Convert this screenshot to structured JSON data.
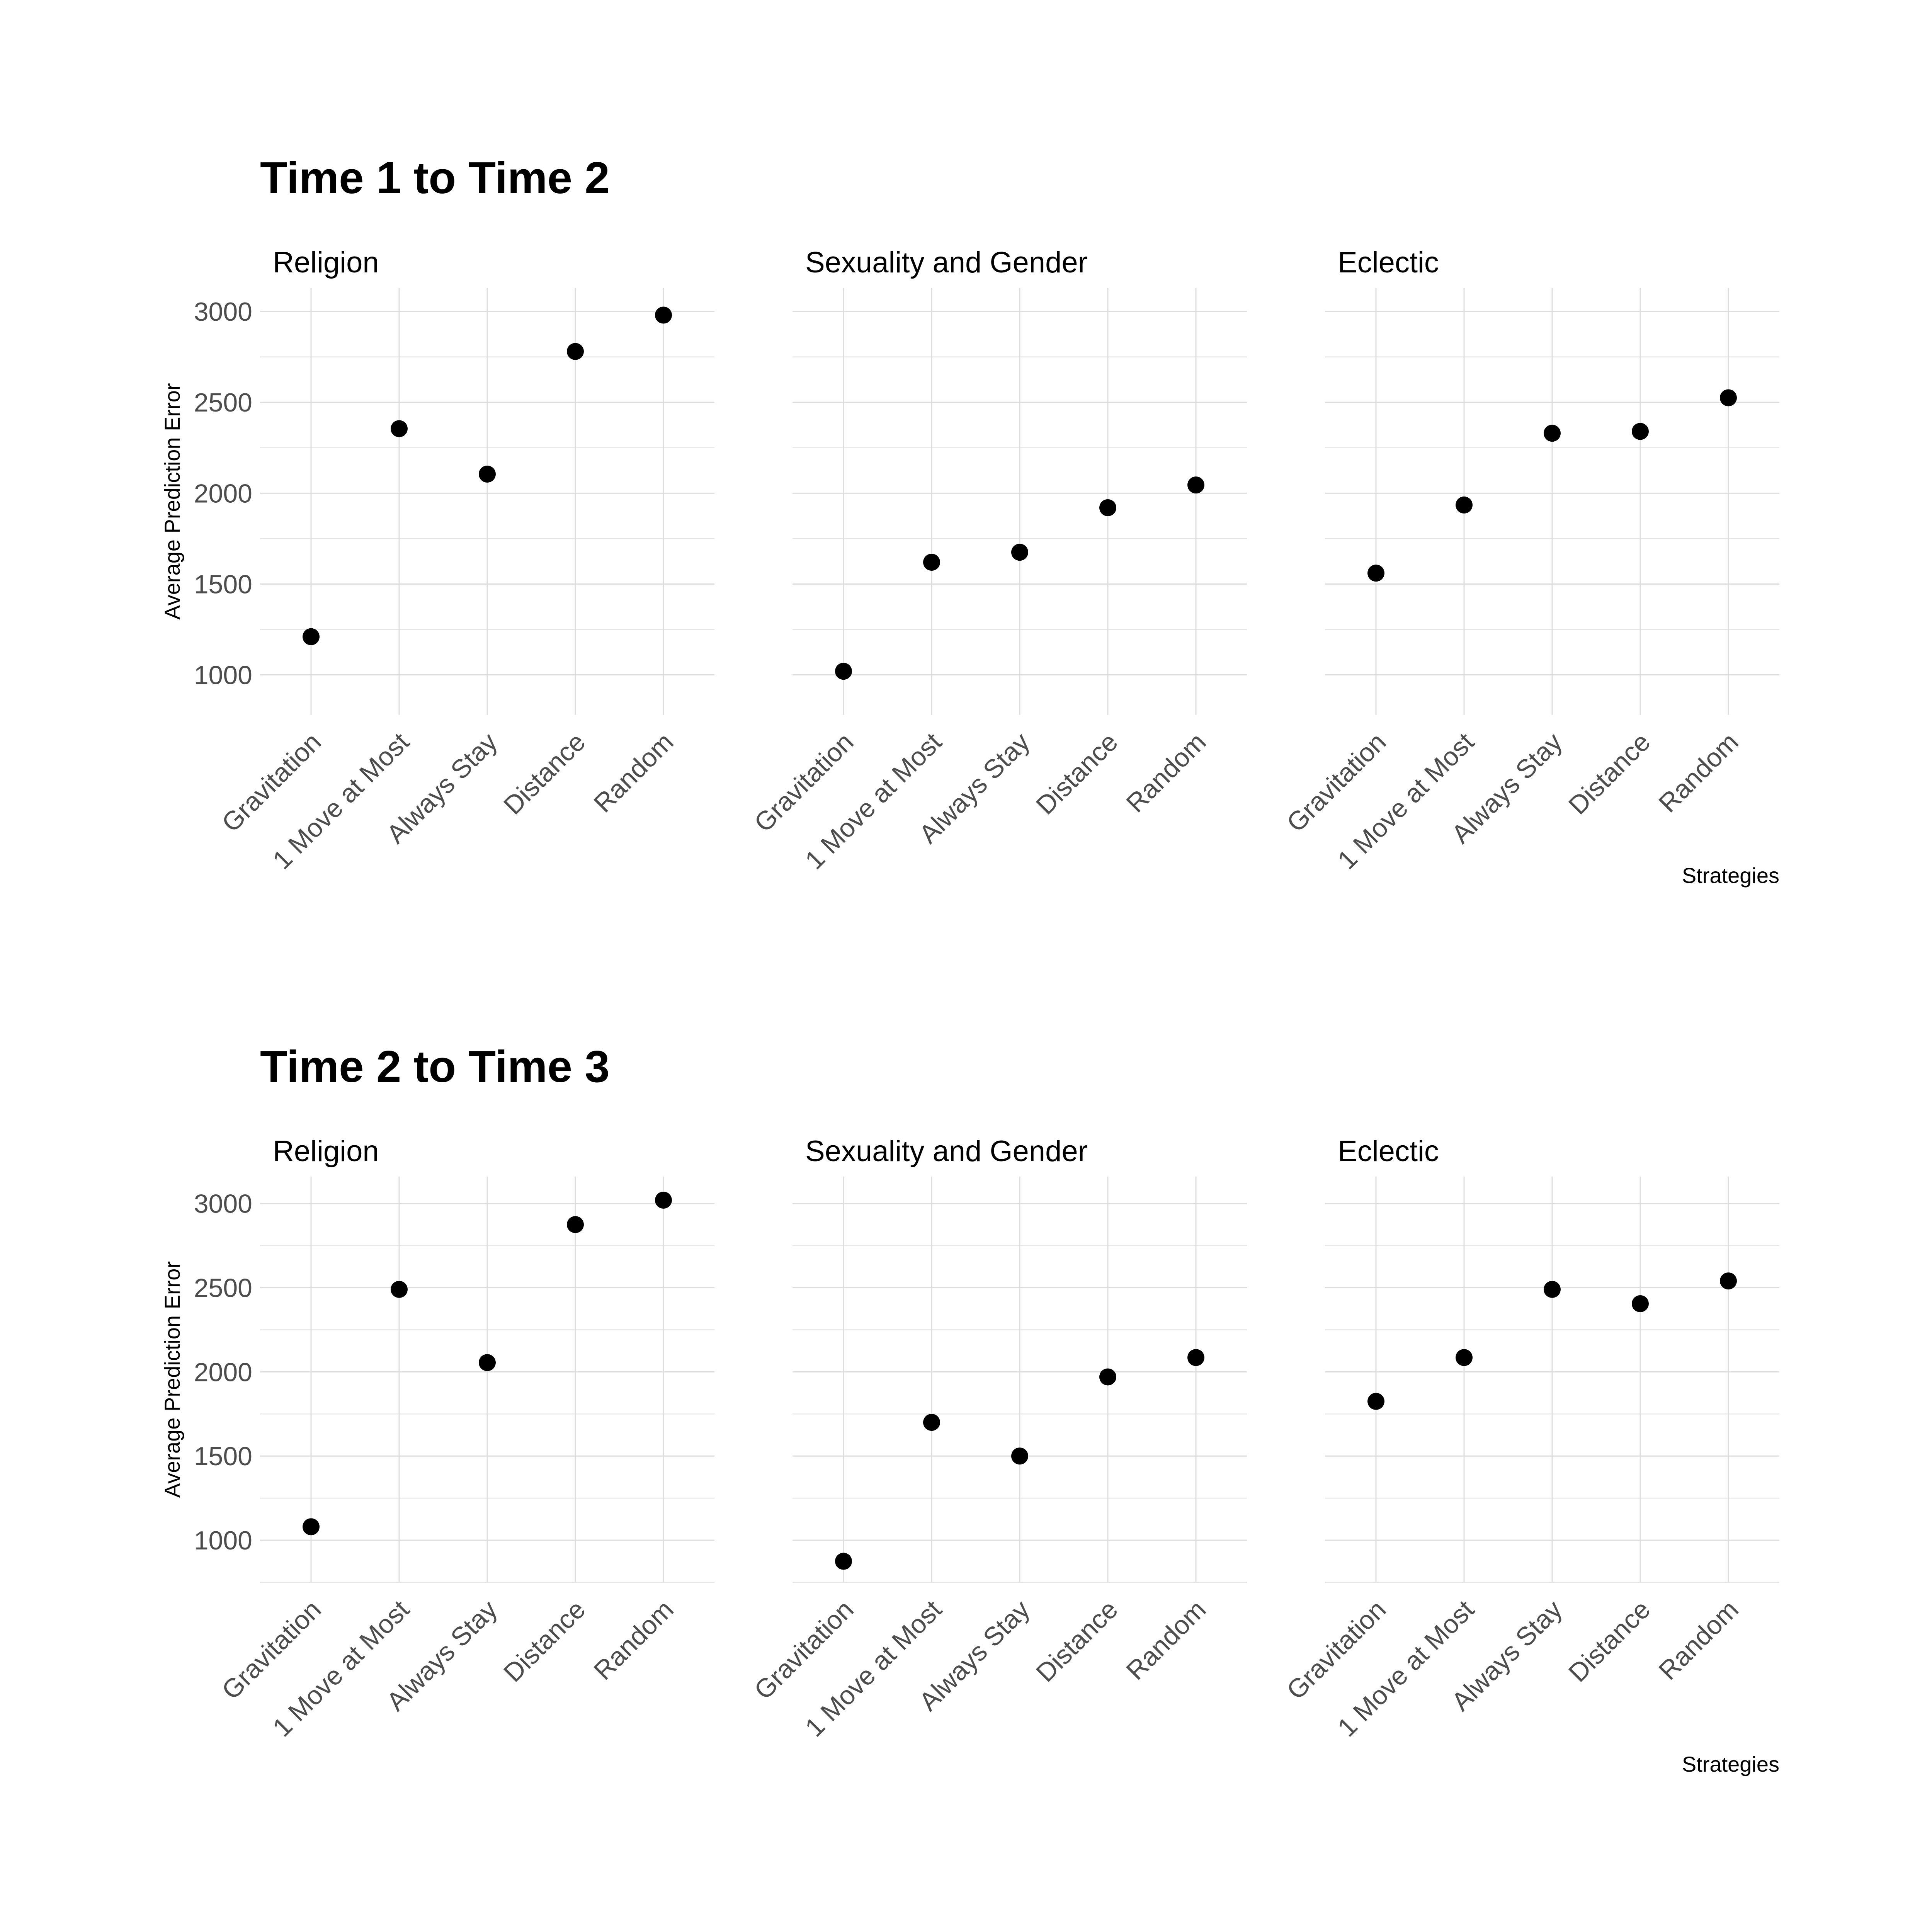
{
  "chart_data": [
    {
      "type": "scatter",
      "title": "Time 1 to Time 2",
      "xlabel": "Strategies",
      "ylabel": "Average Prediction Error",
      "categories": [
        "Gravitation",
        "1 Move at Most",
        "Always Stay",
        "Distance",
        "Random"
      ],
      "ylim": [
        780,
        3130
      ],
      "yticks": [
        1000,
        1500,
        2000,
        2500,
        3000
      ],
      "grid": true,
      "facets": [
        {
          "name": "Religion",
          "values": [
            1210,
            2355,
            2105,
            2780,
            2980
          ]
        },
        {
          "name": "Sexuality and Gender",
          "values": [
            1020,
            1620,
            1675,
            1920,
            2045
          ]
        },
        {
          "name": "Eclectic",
          "values": [
            1560,
            1935,
            2330,
            2340,
            2525
          ]
        }
      ]
    },
    {
      "type": "scatter",
      "title": "Time 2 to Time 3",
      "xlabel": "Strategies",
      "ylabel": "Average Prediction Error",
      "categories": [
        "Gravitation",
        "1 Move at Most",
        "Always Stay",
        "Distance",
        "Random"
      ],
      "ylim": [
        750,
        3160
      ],
      "yticks": [
        1000,
        1500,
        2000,
        2500,
        3000
      ],
      "grid": true,
      "facets": [
        {
          "name": "Religion",
          "values": [
            1080,
            2490,
            2055,
            2875,
            3020
          ]
        },
        {
          "name": "Sexuality and Gender",
          "values": [
            875,
            1700,
            1500,
            1970,
            2085
          ]
        },
        {
          "name": "Eclectic",
          "values": [
            1825,
            2085,
            2490,
            2405,
            2540
          ]
        }
      ]
    }
  ]
}
